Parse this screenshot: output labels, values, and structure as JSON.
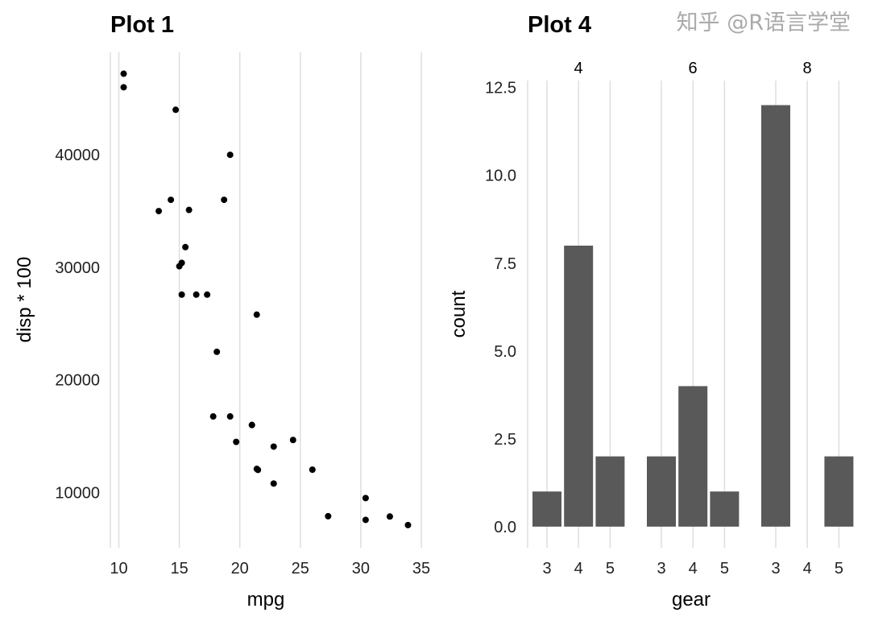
{
  "chart_data": [
    {
      "type": "scatter",
      "title": "Plot 1",
      "xlabel": "mpg",
      "ylabel": "disp * 100",
      "xlim": [
        9.3,
        35.8
      ],
      "ylim": [
        5100,
        49100
      ],
      "xticks": [
        10,
        15,
        20,
        25,
        30,
        35
      ],
      "yticks": [
        10000,
        20000,
        30000,
        40000
      ],
      "grid": "vertical major lines",
      "point_color": "#000000",
      "points": [
        [
          21.0,
          16000
        ],
        [
          21.0,
          16000
        ],
        [
          22.8,
          10800
        ],
        [
          21.4,
          25800
        ],
        [
          18.7,
          36000
        ],
        [
          18.1,
          22500
        ],
        [
          14.3,
          36000
        ],
        [
          24.4,
          14670
        ],
        [
          22.8,
          14080
        ],
        [
          19.2,
          16760
        ],
        [
          17.8,
          16760
        ],
        [
          16.4,
          27580
        ],
        [
          17.3,
          27580
        ],
        [
          15.2,
          27580
        ],
        [
          10.4,
          47200
        ],
        [
          10.4,
          46000
        ],
        [
          14.7,
          44000
        ],
        [
          32.4,
          7870
        ],
        [
          30.4,
          7570
        ],
        [
          33.9,
          7110
        ],
        [
          21.5,
          12010
        ],
        [
          15.5,
          31800
        ],
        [
          15.2,
          30400
        ],
        [
          13.3,
          35000
        ],
        [
          19.2,
          40000
        ],
        [
          27.3,
          7900
        ],
        [
          26.0,
          12030
        ],
        [
          30.4,
          9510
        ],
        [
          15.8,
          35100
        ],
        [
          19.7,
          14500
        ],
        [
          15.0,
          30100
        ],
        [
          21.4,
          12100
        ]
      ]
    },
    {
      "type": "bar",
      "title": "Plot 4",
      "xlabel": "gear",
      "ylabel": "count",
      "ylim": [
        -0.6,
        12.7
      ],
      "yticks": [
        "0.0",
        "2.5",
        "5.0",
        "7.5",
        "10.0",
        "12.5"
      ],
      "grid": "vertical major lines",
      "bar_color": "#595959",
      "categories": [
        "3",
        "4",
        "5"
      ],
      "facets": [
        {
          "label": "4",
          "values": [
            1,
            8,
            2
          ]
        },
        {
          "label": "6",
          "values": [
            2,
            4,
            1
          ]
        },
        {
          "label": "8",
          "values": [
            12,
            0,
            2
          ]
        }
      ]
    }
  ],
  "watermark": "知乎 @R语言学堂"
}
